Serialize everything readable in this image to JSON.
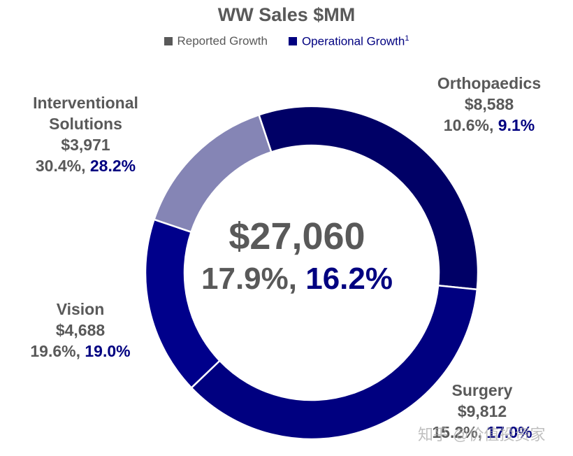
{
  "chart_data": {
    "type": "pie",
    "title": "WW Sales $MM",
    "legend": {
      "placement": "top",
      "items": [
        {
          "label": "Reported Growth",
          "sup": "",
          "color": "#595959"
        },
        {
          "label": "Operational Growth",
          "sup": "1",
          "color": "#000080"
        }
      ]
    },
    "center": {
      "total": "$27,060",
      "reported": "17.9%,",
      "operational": "16.2%"
    },
    "segments": [
      {
        "name": "Orthopaedics",
        "value": 8588,
        "value_label": "$8,588",
        "reported": "10.6%,",
        "operational": "9.1%",
        "color": "#000066"
      },
      {
        "name": "Surgery",
        "value": 9812,
        "value_label": "$9,812",
        "reported": "15.2%,",
        "operational": "17.0%",
        "color": "#000080"
      },
      {
        "name": "Vision",
        "value": 4688,
        "value_label": "$4,688",
        "reported": "19.6%,",
        "operational": "19.0%",
        "color": "#00008b"
      },
      {
        "name": "Interventional Solutions",
        "name_lines": [
          "Interventional",
          "Solutions"
        ],
        "value": 3971,
        "value_label": "$3,971",
        "reported": "30.4%,",
        "operational": "28.2%",
        "color": "#8585b5"
      }
    ]
  },
  "watermark": "知乎 @价值投资家"
}
